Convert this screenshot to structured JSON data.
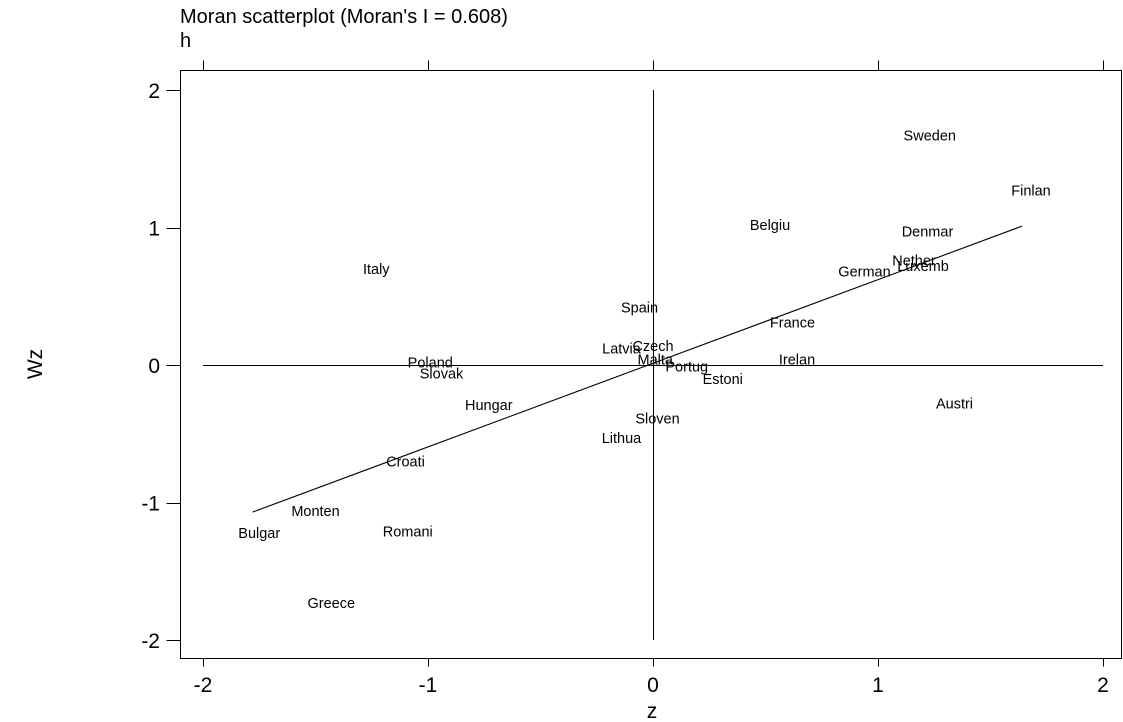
{
  "chart_data": {
    "type": "scatter",
    "title": "Moran scatterplot (Moran's I = 0.608)",
    "subtitle": "h",
    "xlabel": "z",
    "ylabel": "Wz",
    "xlim": [
      -2,
      2
    ],
    "ylim": [
      -2,
      2
    ],
    "xticks": [
      -2,
      -1,
      0,
      1,
      2
    ],
    "yticks": [
      2,
      1,
      0,
      -1,
      -2
    ],
    "xtick_labels": [
      "-2",
      "-1",
      "0",
      "1",
      "2"
    ],
    "ytick_labels": [
      "2",
      "1",
      "0",
      "-1",
      "-2"
    ],
    "grid": false,
    "legend": "none",
    "reference_lines": {
      "x": 0,
      "y": 0
    },
    "fit_line": {
      "x": [
        -1.78,
        1.64
      ],
      "y": [
        -1.07,
        1.01
      ]
    },
    "points": [
      {
        "label": "Sweden",
        "x": 1.23,
        "y": 1.67
      },
      {
        "label": "Finlan",
        "x": 1.68,
        "y": 1.27
      },
      {
        "label": "Belgiu",
        "x": 0.52,
        "y": 1.02
      },
      {
        "label": "Denmar",
        "x": 1.22,
        "y": 0.97
      },
      {
        "label": "Nether",
        "x": 1.16,
        "y": 0.76
      },
      {
        "label": "Luxemb",
        "x": 1.2,
        "y": 0.72
      },
      {
        "label": "German",
        "x": 0.94,
        "y": 0.68
      },
      {
        "label": "Italy",
        "x": -1.23,
        "y": 0.7
      },
      {
        "label": "Spain",
        "x": -0.06,
        "y": 0.42
      },
      {
        "label": "France",
        "x": 0.62,
        "y": 0.31
      },
      {
        "label": "Latvia",
        "x": -0.14,
        "y": 0.12
      },
      {
        "label": "Czech",
        "x": 0.0,
        "y": 0.14
      },
      {
        "label": "Malta",
        "x": 0.01,
        "y": 0.04
      },
      {
        "label": "Portug",
        "x": 0.15,
        "y": -0.01
      },
      {
        "label": "Irelan",
        "x": 0.64,
        "y": 0.04
      },
      {
        "label": "Estoni",
        "x": 0.31,
        "y": -0.1
      },
      {
        "label": "Poland",
        "x": -0.99,
        "y": 0.02
      },
      {
        "label": "Slovak",
        "x": -0.94,
        "y": -0.06
      },
      {
        "label": "Hungar",
        "x": -0.73,
        "y": -0.29
      },
      {
        "label": "Austri",
        "x": 1.34,
        "y": -0.28
      },
      {
        "label": "Sloven",
        "x": 0.02,
        "y": -0.39
      },
      {
        "label": "Lithua",
        "x": -0.14,
        "y": -0.53
      },
      {
        "label": "Croati",
        "x": -1.1,
        "y": -0.7
      },
      {
        "label": "Monten",
        "x": -1.5,
        "y": -1.06
      },
      {
        "label": "Bulgar",
        "x": -1.75,
        "y": -1.22
      },
      {
        "label": "Romani",
        "x": -1.09,
        "y": -1.21
      },
      {
        "label": "Greece",
        "x": -1.43,
        "y": -1.73
      }
    ]
  }
}
